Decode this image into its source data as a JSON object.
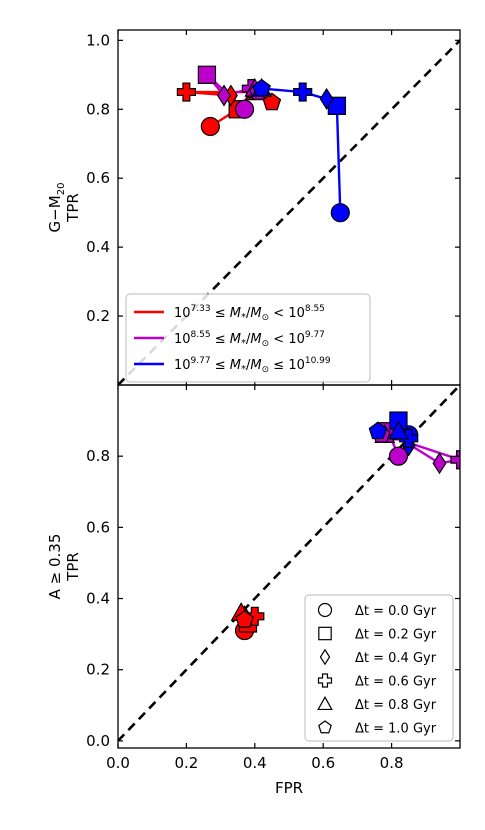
{
  "chart_data": {
    "type": "scatter",
    "marker_shapes": [
      "circle",
      "square",
      "diamond",
      "plus",
      "triangle",
      "pentagon"
    ],
    "panels": [
      {
        "ylabel_line1": "G−M",
        "ylabel_line1_sub": "20",
        "ylabel_line2": "TPR",
        "xlim": [
          0.0,
          1.0
        ],
        "ylim": [
          0.0,
          1.03
        ],
        "yticks": [
          0.2,
          0.4,
          0.6,
          0.8,
          1.0
        ],
        "ytick_labels": [
          "0.2",
          "0.4",
          "0.6",
          "0.8",
          "1.0"
        ],
        "series": [
          {
            "color": "#ff0000",
            "points": [
              [
                0.27,
                0.75
              ],
              [
                0.35,
                0.8
              ],
              [
                0.33,
                0.84
              ],
              [
                0.2,
                0.85
              ],
              [
                0.4,
                0.85
              ],
              [
                0.45,
                0.82
              ]
            ],
            "legend_prefix": "10",
            "legend_sup_low": "7.33",
            "legend_op_low": "≤",
            "legend_op_high": "<",
            "legend_sup_high": "8.55"
          },
          {
            "color": "#bb00cc",
            "points": [
              [
                0.37,
                0.8
              ],
              [
                0.26,
                0.9
              ],
              [
                0.31,
                0.84
              ],
              [
                0.39,
                0.86
              ],
              [
                0.4,
                0.86
              ],
              [
                0.41,
                0.85
              ]
            ],
            "legend_prefix": "10",
            "legend_sup_low": "8.55",
            "legend_op_low": "≤",
            "legend_op_high": "<",
            "legend_sup_high": "9.77"
          },
          {
            "color": "#0000ff",
            "points": [
              [
                0.65,
                0.5
              ],
              [
                0.64,
                0.81
              ],
              [
                0.61,
                0.83
              ],
              [
                0.54,
                0.85
              ],
              [
                0.42,
                0.86
              ],
              [
                0.42,
                0.86
              ]
            ],
            "legend_prefix": "10",
            "legend_sup_low": "9.77",
            "legend_op_low": "≤",
            "legend_op_high": "≤",
            "legend_sup_high": "10.99"
          }
        ],
        "legend_var": "M",
        "legend_var_sub": "*",
        "legend_denom": "M",
        "legend_denom_sub": "⊙",
        "legend_location": "lower-left"
      },
      {
        "ylabel_line1": "A ≥ 0.35",
        "ylabel_line2": "TPR",
        "xlim": [
          0.0,
          1.0
        ],
        "ylim": [
          -0.02,
          1.0
        ],
        "yticks": [
          0.0,
          0.2,
          0.4,
          0.6,
          0.8
        ],
        "ytick_labels": [
          "0.0",
          "0.2",
          "0.4",
          "0.6",
          "0.8"
        ],
        "series": [
          {
            "color": "#ff0000",
            "points": [
              [
                0.37,
                0.31
              ],
              [
                0.38,
                0.33
              ],
              [
                0.37,
                0.35
              ],
              [
                0.4,
                0.35
              ],
              [
                0.36,
                0.36
              ],
              [
                0.37,
                0.34
              ]
            ]
          },
          {
            "color": "#bb00cc",
            "points": [
              [
                0.82,
                0.8
              ],
              [
                0.79,
                0.87
              ],
              [
                0.94,
                0.78
              ],
              [
                1.0,
                0.79
              ],
              [
                0.78,
                0.86
              ],
              [
                0.77,
                0.86
              ]
            ]
          },
          {
            "color": "#0000ff",
            "points": [
              [
                0.85,
                0.86
              ],
              [
                0.82,
                0.9
              ],
              [
                0.85,
                0.83
              ],
              [
                0.85,
                0.85
              ],
              [
                0.82,
                0.87
              ],
              [
                0.76,
                0.87
              ]
            ]
          }
        ],
        "legend_entries": [
          {
            "shape": "circle",
            "label": "Δt = 0.0 Gyr"
          },
          {
            "shape": "square",
            "label": "Δt = 0.2 Gyr"
          },
          {
            "shape": "diamond",
            "label": "Δt = 0.4 Gyr"
          },
          {
            "shape": "plus",
            "label": "Δt = 0.6 Gyr"
          },
          {
            "shape": "triangle",
            "label": "Δt = 0.8 Gyr"
          },
          {
            "shape": "pentagon",
            "label": "Δt = 1.0 Gyr"
          }
        ],
        "legend_location": "lower-right"
      }
    ],
    "xlabel": "FPR",
    "xticks": [
      0.0,
      0.2,
      0.4,
      0.6,
      0.8
    ],
    "xtick_labels": [
      "0.0",
      "0.2",
      "0.4",
      "0.6",
      "0.8"
    ],
    "reference_line": "diagonal y = x, dashed black",
    "grid": false
  }
}
